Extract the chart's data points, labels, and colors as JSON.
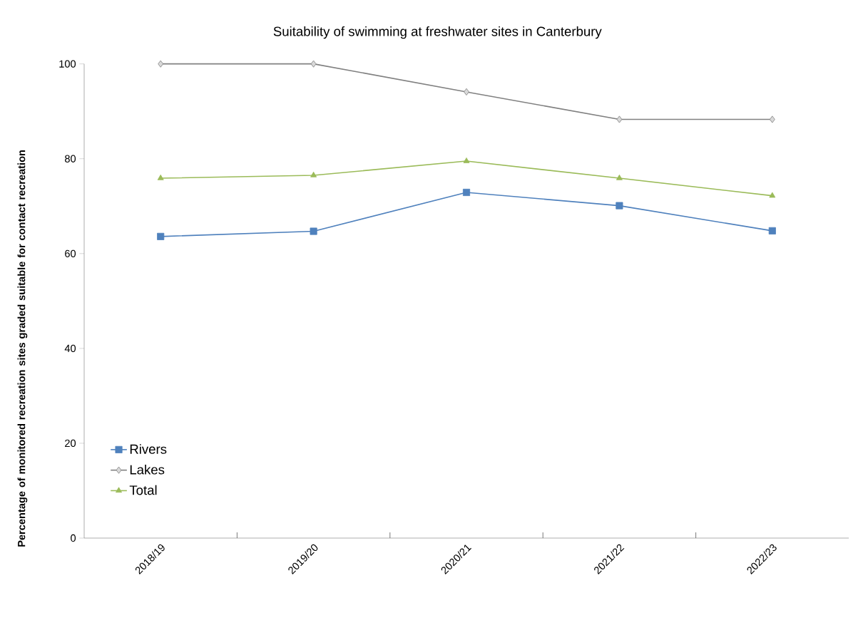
{
  "chart_data": {
    "type": "line",
    "title": "Suitability of swimming at freshwater sites in Canterbury",
    "ylabel": "Percentage of monitored recreation sites graded suitable for contact recreation",
    "categories": [
      "2018/19",
      "2019/20",
      "2020/21",
      "2021/22",
      "2022/23"
    ],
    "series": [
      {
        "name": "Rivers",
        "color": "#4f81bd",
        "marker": "square",
        "values": [
          63.6,
          64.7,
          72.9,
          70.1,
          64.8
        ]
      },
      {
        "name": "Lakes",
        "color": "#808080",
        "marker": "diamond",
        "values": [
          100,
          100,
          94.1,
          88.3,
          88.3
        ]
      },
      {
        "name": "Total",
        "color": "#9bbb59",
        "marker": "triangle",
        "values": [
          75.9,
          76.5,
          79.5,
          75.9,
          72.2
        ]
      }
    ],
    "ylim": [
      0,
      100
    ],
    "yticks": [
      0,
      20,
      40,
      60,
      80,
      100
    ],
    "grid": false,
    "legend": "bottom left",
    "line_style": "solid"
  }
}
